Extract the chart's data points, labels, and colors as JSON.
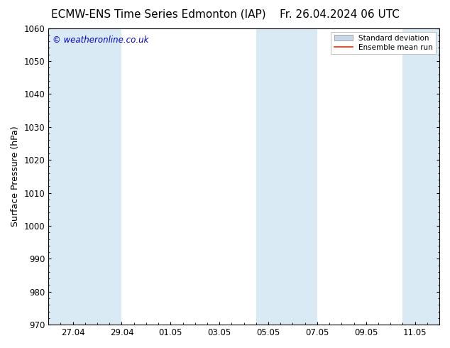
{
  "title_left": "ECMW-ENS Time Series Edmonton (IAP)",
  "title_right": "Fr. 26.04.2024 06 UTC",
  "ylabel": "Surface Pressure (hPa)",
  "ylim": [
    970,
    1060
  ],
  "yticks": [
    970,
    980,
    990,
    1000,
    1010,
    1020,
    1030,
    1040,
    1050,
    1060
  ],
  "xlim": [
    0,
    16
  ],
  "xtick_labels": [
    "27.04",
    "29.04",
    "01.05",
    "03.05",
    "05.05",
    "07.05",
    "09.05",
    "11.05"
  ],
  "xtick_positions": [
    1,
    3,
    5,
    7,
    9,
    11,
    13,
    15
  ],
  "shaded_bands": [
    {
      "start": 0.0,
      "end": 1.5
    },
    {
      "start": 1.5,
      "end": 3.0
    },
    {
      "start": 8.5,
      "end": 9.5
    },
    {
      "start": 9.5,
      "end": 11.0
    },
    {
      "start": 14.5,
      "end": 16.0
    }
  ],
  "shaded_color": "#daeaf5",
  "background_color": "#ffffff",
  "watermark_text": "© weatheronline.co.uk",
  "watermark_color": "#0000cc",
  "legend_std_color": "#c8d8e8",
  "legend_std_edge": "#888888",
  "legend_mean_color": "#ff2200",
  "title_fontsize": 11,
  "ylabel_fontsize": 9,
  "tick_fontsize": 8.5,
  "watermark_fontsize": 8.5,
  "legend_fontsize": 7.5
}
